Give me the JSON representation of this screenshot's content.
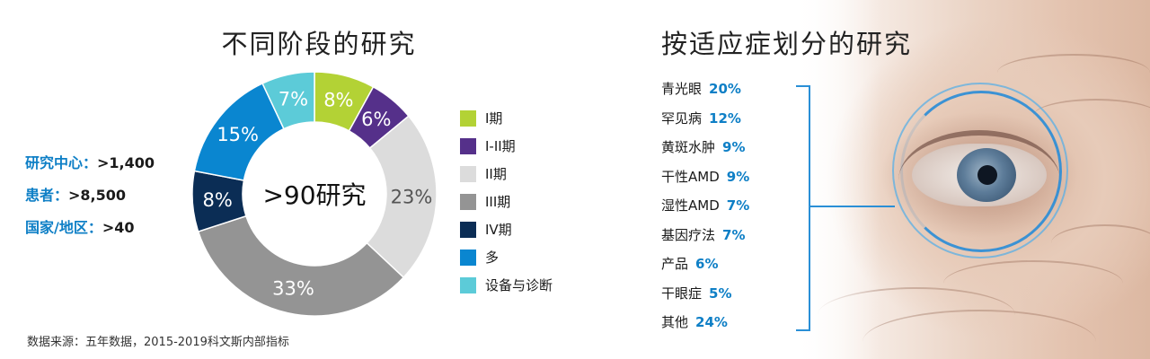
{
  "left_section": {
    "title": "不同阶段的研究",
    "stats": [
      {
        "label": "研究中心：",
        "value": ">1,400"
      },
      {
        "label": "患者：",
        "value": ">8,500"
      },
      {
        "label": "国家/地区：",
        "value": ">40"
      }
    ],
    "source": "数据来源：五年数据，2015-2019科文斯内部指标"
  },
  "chart_data": {
    "type": "pie",
    "donut": true,
    "center_label": ">90研究",
    "legend_placement": "right",
    "slices": [
      {
        "label": "I期",
        "value": 8,
        "display": "8%",
        "color": "#b3d235",
        "text_color": "#ffffff"
      },
      {
        "label": "I-II期",
        "value": 6,
        "display": "6%",
        "color": "#55308a",
        "text_color": "#ffffff"
      },
      {
        "label": "II期",
        "value": 23,
        "display": "23%",
        "color": "#dcdcdc",
        "text_color": "#555555"
      },
      {
        "label": "III期",
        "value": 33,
        "display": "33%",
        "color": "#949494",
        "text_color": "#ffffff"
      },
      {
        "label": "IV期",
        "value": 8,
        "display": "8%",
        "color": "#0b2d55",
        "text_color": "#ffffff"
      },
      {
        "label": "多",
        "value": 15,
        "display": "15%",
        "color": "#0a86d0",
        "text_color": "#ffffff"
      },
      {
        "label": "设备与诊断",
        "value": 7,
        "display": "7%",
        "color": "#5ccbd8",
        "text_color": "#ffffff"
      }
    ]
  },
  "right_section": {
    "title": "按适应症划分的研究",
    "items": [
      {
        "label": "青光眼",
        "pct": "20%"
      },
      {
        "label": "罕见病",
        "pct": "12%"
      },
      {
        "label": "黄斑水肿",
        "pct": "9%"
      },
      {
        "label": "干性AMD",
        "pct": "9%"
      },
      {
        "label": "湿性AMD",
        "pct": "7%"
      },
      {
        "label": "基因疗法",
        "pct": "7%"
      },
      {
        "label": "产品",
        "pct": "6%"
      },
      {
        "label": "干眼症",
        "pct": "5%"
      },
      {
        "label": "其他",
        "pct": "24%"
      }
    ],
    "accent_color": "#0e7fc6"
  }
}
